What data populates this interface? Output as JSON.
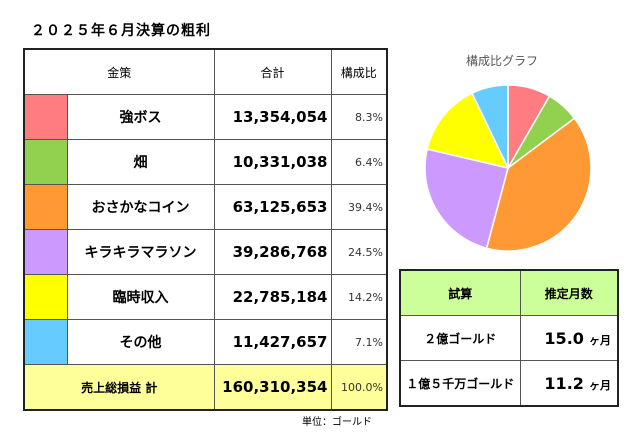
{
  "title": "２０２５年６月決算の粗利",
  "table": {
    "headers": [
      "金策",
      "合計",
      "構成比"
    ],
    "rows": [
      {
        "name": "強ボス",
        "total": "13,354,054",
        "ratio": "8.3%",
        "color": "#FF7C80",
        "value": 13354054
      },
      {
        "name": "畑",
        "total": "10,331,038",
        "ratio": "6.4%",
        "color": "#92D050",
        "value": 10331038
      },
      {
        "name": "おさかなコイン",
        "total": "63,125,653",
        "ratio": "39.4%",
        "color": "#FF9933",
        "value": 63125653
      },
      {
        "name": "キラキラマラソン",
        "total": "39,286,768",
        "ratio": "24.5%",
        "color": "#CC99FF",
        "value": 39286768
      },
      {
        "name": "臨時収入",
        "total": "22,785,184",
        "ratio": "14.2%",
        "color": "#FFFF00",
        "value": 22785184
      },
      {
        "name": "その他",
        "total": "11,427,657",
        "ratio": "7.1%",
        "color": "#66CCFF",
        "value": 11427657
      }
    ],
    "sum": {
      "label": "売上総損益 計",
      "total": "160,310,354",
      "ratio": "100.0%",
      "color": "#FFFF99"
    }
  },
  "unit": "単位：ゴールド",
  "pie_title": "構成比グラフ",
  "estimate": {
    "headers": [
      "試算",
      "推定月数"
    ],
    "header_color": "#CCFF99",
    "rows": [
      {
        "label": "２億ゴールド",
        "months": "15.0",
        "suffix": "ヶ月"
      },
      {
        "label": "１億５千万ゴールド",
        "months": "11.2",
        "suffix": "ヶ月"
      }
    ]
  }
}
